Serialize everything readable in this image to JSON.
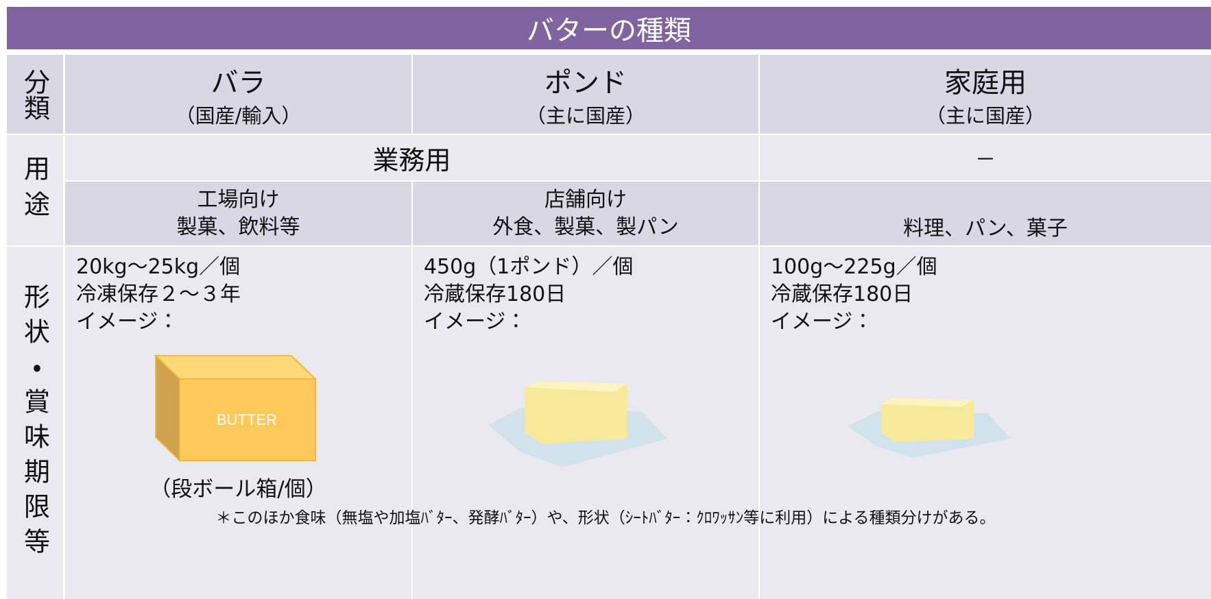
{
  "title": "バターの種類",
  "table": {
    "row_headers": [
      "分類",
      "用途",
      "形状・賞味期限等"
    ],
    "columns": [
      {
        "name": "バラ",
        "sub": "（国産/輸入）"
      },
      {
        "name": "ポンド",
        "sub": "（主に国産）"
      },
      {
        "name": "家庭用",
        "sub": "（主に国産）"
      }
    ],
    "usage": {
      "business": "業務用",
      "home": "－"
    },
    "targets": [
      {
        "name": "工場向け",
        "detail": "製菓、飲料等"
      },
      {
        "name": "店舗向け",
        "detail": "外食、製菓、製パン"
      },
      {
        "detail": "料理、パン、菓子"
      }
    ],
    "specs": [
      {
        "lines": [
          "20kg～25kg／個",
          "冷凍保存２～３年",
          "イメージ："
        ],
        "image_label": "BUTTER",
        "caption": "（段ボール箱/個）"
      },
      {
        "lines": [
          "450g（1ポンド）／個",
          "冷蔵保存180日",
          "イメージ："
        ]
      },
      {
        "lines": [
          "100g～225g／個",
          "冷蔵保存180日",
          "イメージ："
        ]
      }
    ]
  },
  "footnote": "＊このほか食味（無塩や加塩ﾊﾞﾀｰ、発酵ﾊﾞﾀｰ）や、形状（ｼｰﾄﾊﾞﾀｰ：ｸﾛﾜｯｻﾝ等に利用）による種類分けがある。"
}
